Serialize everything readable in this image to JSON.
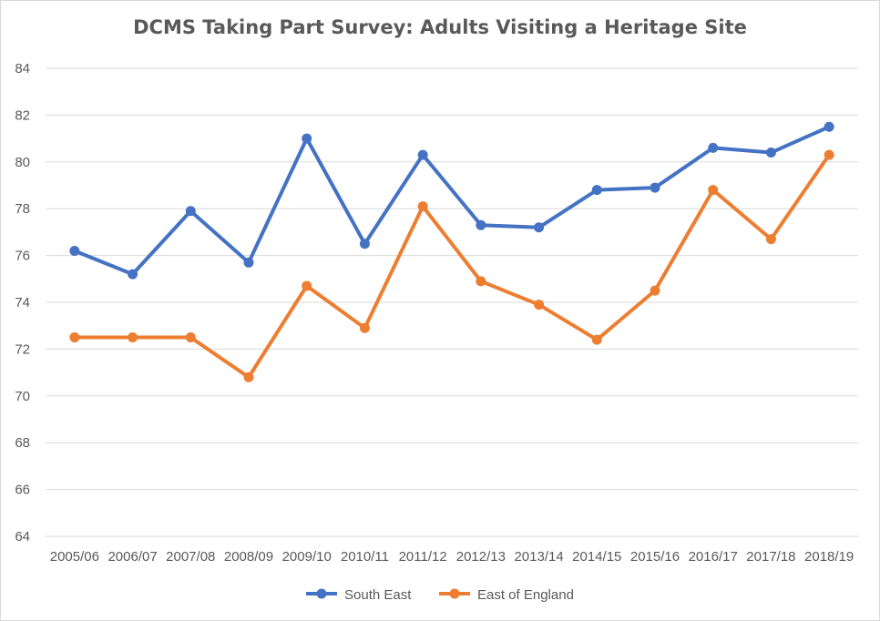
{
  "chart_data": {
    "type": "line",
    "title": "DCMS Taking Part Survey: Adults Visiting a Heritage Site",
    "xlabel": "",
    "ylabel": "",
    "categories": [
      "2005/06",
      "2006/07",
      "2007/08",
      "2008/09",
      "2009/10",
      "2010/11",
      "2011/12",
      "2012/13",
      "2013/14",
      "2014/15",
      "2015/16",
      "2016/17",
      "2017/18",
      "2018/19"
    ],
    "ylim": [
      64,
      84
    ],
    "ytick_step": 2,
    "grid": true,
    "legend_position": "bottom",
    "series": [
      {
        "name": "South East",
        "color": "#4472C4",
        "values": [
          76.2,
          75.2,
          77.9,
          75.7,
          81.0,
          76.5,
          80.3,
          77.3,
          77.2,
          78.8,
          78.9,
          80.6,
          80.4,
          81.5
        ]
      },
      {
        "name": "East of England",
        "color": "#ED7D31",
        "values": [
          72.5,
          72.5,
          72.5,
          70.8,
          74.7,
          72.9,
          78.1,
          74.9,
          73.9,
          72.4,
          74.5,
          78.8,
          76.7,
          80.3
        ]
      }
    ]
  }
}
